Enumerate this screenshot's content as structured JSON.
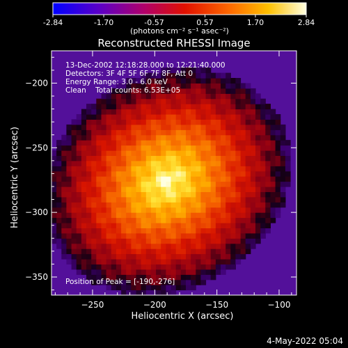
{
  "chart_data": {
    "type": "heatmap",
    "title": "Reconstructed RHESSI Image",
    "xlabel": "Heliocentric X (arcsec)",
    "ylabel": "Heliocentric Y (arcsec)",
    "xlim": [
      -283,
      -86
    ],
    "ylim": [
      -364,
      -175
    ],
    "x_ticks": [
      -250,
      -200,
      -150,
      -100
    ],
    "y_ticks": [
      -200,
      -250,
      -300,
      -350
    ],
    "peak": {
      "x": -190,
      "y": -276,
      "value": 2.84
    },
    "colorbar": {
      "min": -2.84,
      "max": 2.84,
      "ticks": [
        "-2.84",
        "-1.70",
        "-0.57",
        "0.57",
        "1.70",
        "2.84"
      ],
      "tick_values": [
        -2.84,
        -1.7,
        -0.57,
        0.57,
        1.7,
        2.84
      ],
      "units_label": "(photons cm⁻² s⁻¹ asec⁻²)",
      "colormap": "blue-purple-red-yellow-white"
    },
    "info_lines": [
      "13-Dec-2002 12:18:28.000 to 12:21:40.000",
      "Detectors: 3F 4F 5F 6F 7F 8F, Att 0",
      "Energy Range: 3.0 - 6.0 keV",
      "Clean    Total counts: 6.53E+05"
    ],
    "peak_label": "Position of Peak = [-190,-276]",
    "grid": false
  },
  "footer": {
    "timestamp": "4-May-2022 05:04"
  },
  "colors": {
    "background": "#000000",
    "text": "#ffffff"
  }
}
